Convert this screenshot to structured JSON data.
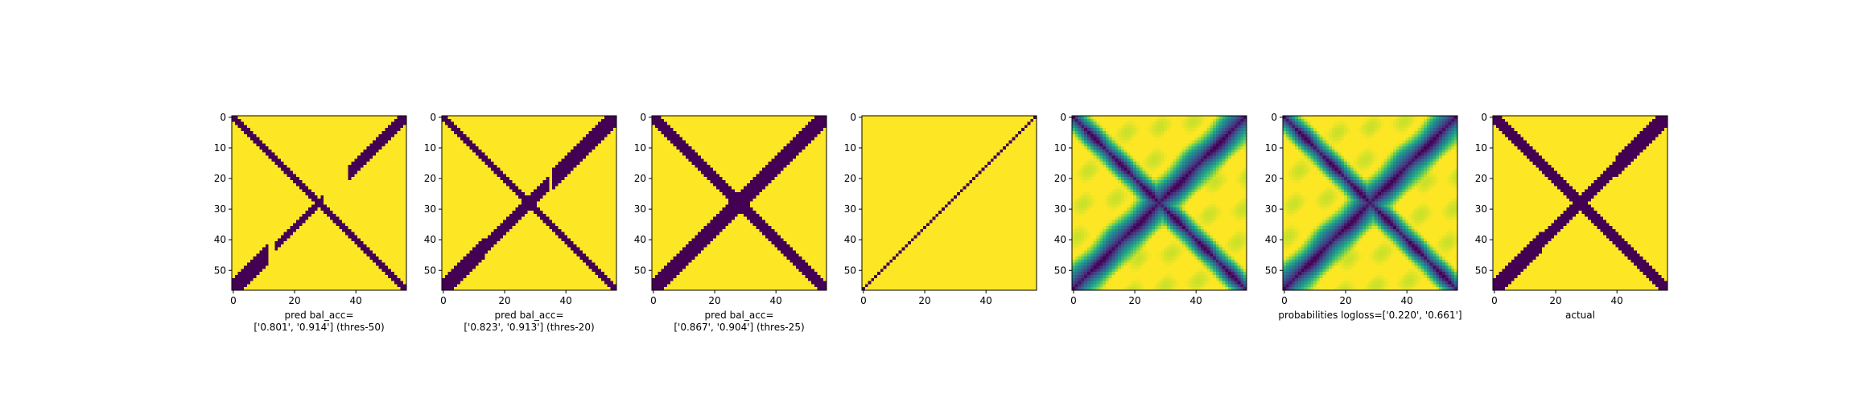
{
  "colors": {
    "low": "#440154",
    "high": "#fde725",
    "viridis": [
      "#440154",
      "#482878",
      "#3e4989",
      "#31688e",
      "#26828e",
      "#1f9e89",
      "#35b779",
      "#6ece58",
      "#b5de2b",
      "#fde725"
    ]
  },
  "chart_data": [
    {
      "type": "heatmap",
      "size": 57,
      "style": "binary",
      "xticks": [
        0,
        20,
        40
      ],
      "yticks": [
        0,
        10,
        20,
        30,
        40,
        50
      ],
      "xlabel_lines": [
        "pred bal_acc=",
        "['0.801', '0.914'] (thres-50)"
      ],
      "matrix": {
        "antidiag_half_width": 1.5,
        "diag_segments": [
          [
            0,
            12,
            3.0
          ],
          [
            14,
            30,
            1.5
          ],
          [
            38,
            57,
            2.5
          ]
        ]
      }
    },
    {
      "type": "heatmap",
      "size": 57,
      "style": "binary",
      "xticks": [
        0,
        20,
        40
      ],
      "yticks": [
        0,
        10,
        20,
        30,
        40,
        50
      ],
      "xlabel_lines": [
        "pred bal_acc=",
        "['0.823', '0.913'] (thres-20)"
      ],
      "matrix": {
        "antidiag_half_width": 1.8,
        "diag_segments": [
          [
            0,
            14,
            3.0
          ],
          [
            14,
            35,
            2.0
          ],
          [
            36,
            57,
            3.0
          ]
        ]
      }
    },
    {
      "type": "heatmap",
      "size": 57,
      "style": "binary",
      "xticks": [
        0,
        20,
        40
      ],
      "yticks": [
        0,
        10,
        20,
        30,
        40,
        50
      ],
      "xlabel_lines": [
        "pred bal_acc=",
        "['0.867', '0.904'] (thres-25)"
      ],
      "matrix": {
        "antidiag_half_width": 2.2,
        "diag_segments": [
          [
            0,
            16,
            3.5
          ],
          [
            16,
            40,
            3.0
          ],
          [
            40,
            57,
            3.5
          ]
        ]
      }
    },
    {
      "type": "heatmap",
      "size": 57,
      "style": "binary",
      "xticks": [
        0,
        20,
        40
      ],
      "yticks": [
        0,
        10,
        20,
        30,
        40,
        50
      ],
      "xlabel_lines": [],
      "matrix": {
        "antidiag_half_width": 0,
        "diag_segments": [
          [
            0,
            57,
            0.6
          ]
        ]
      }
    },
    {
      "type": "heatmap",
      "size": 57,
      "style": "continuous",
      "xticks": [
        0,
        20,
        40
      ],
      "yticks": [
        0,
        10,
        20,
        30,
        40,
        50
      ],
      "xlabel_lines": [],
      "matrix": {
        "antidiag_half_width": 2.0,
        "diag_segments": [
          [
            0,
            57,
            3.0
          ]
        ]
      }
    },
    {
      "type": "heatmap",
      "size": 57,
      "style": "continuous",
      "xticks": [
        0,
        20,
        40
      ],
      "yticks": [
        0,
        10,
        20,
        30,
        40,
        50
      ],
      "xlabel_lines": [
        "probabilities logloss=['0.220', '0.661']"
      ],
      "matrix": {
        "antidiag_half_width": 2.0,
        "diag_segments": [
          [
            0,
            57,
            3.0
          ]
        ]
      }
    },
    {
      "type": "heatmap",
      "size": 57,
      "style": "binary",
      "xticks": [
        0,
        20,
        40
      ],
      "yticks": [
        0,
        10,
        20,
        30,
        40,
        50
      ],
      "xlabel_lines": [
        "actual"
      ],
      "matrix": {
        "antidiag_half_width": 2.0,
        "diag_segments": [
          [
            0,
            16,
            3.0
          ],
          [
            16,
            40,
            2.5
          ],
          [
            40,
            57,
            3.5
          ]
        ]
      }
    }
  ]
}
